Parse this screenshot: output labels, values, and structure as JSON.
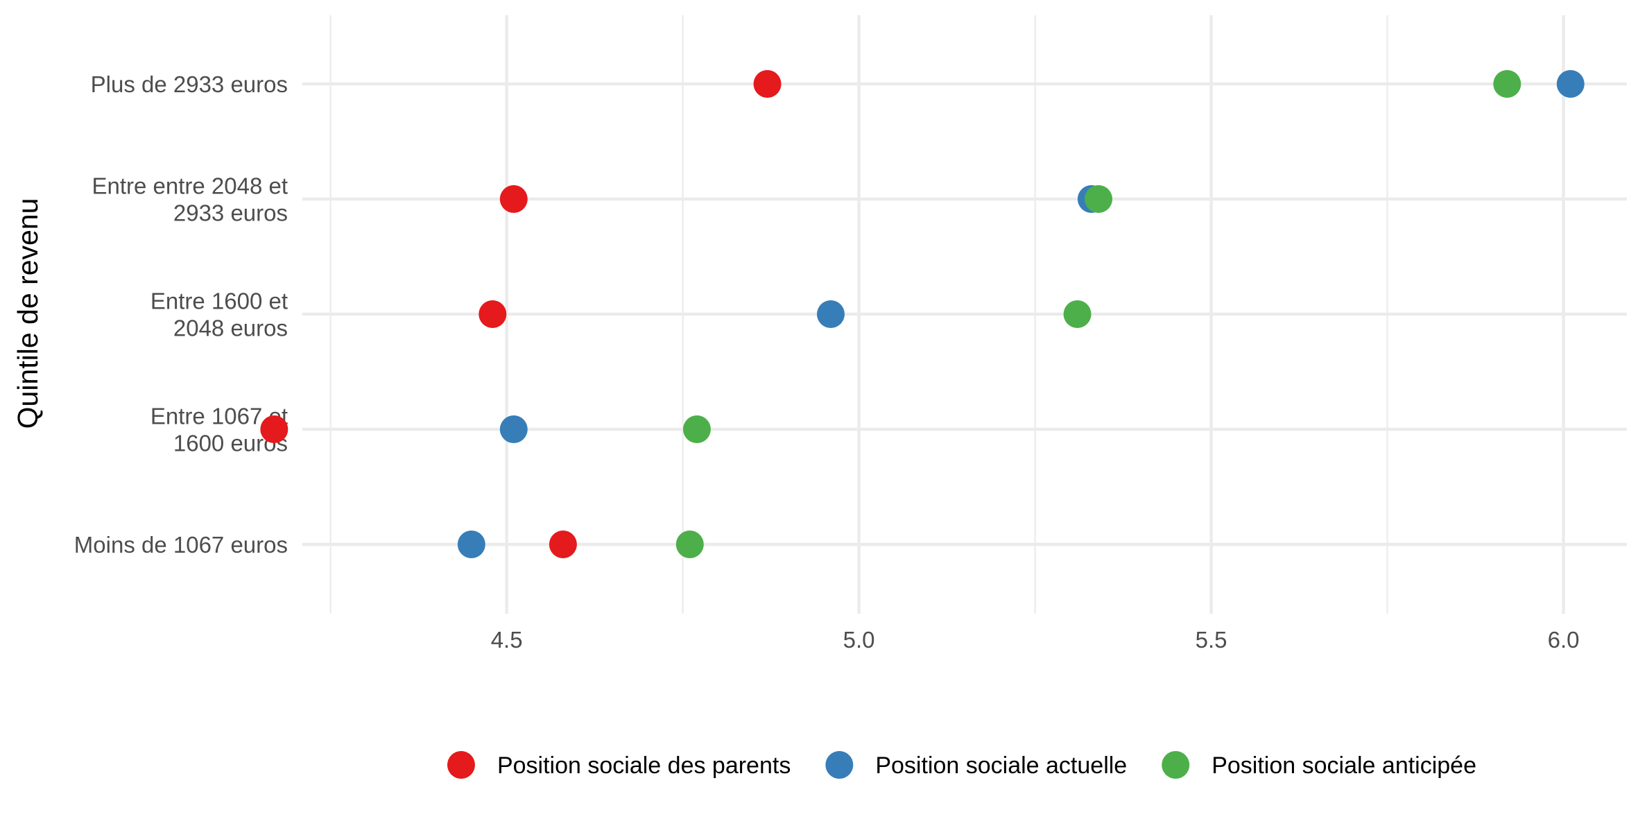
{
  "chart_data": {
    "type": "scatter",
    "title": "",
    "xlabel": "",
    "ylabel": "Quintile de revenu",
    "xlim": [
      4.21,
      6.09
    ],
    "x_ticks": [
      4.5,
      5.0,
      5.5,
      6.0
    ],
    "x_tick_labels": [
      "4.5",
      "5.0",
      "5.5",
      "6.0"
    ],
    "grid": true,
    "legend_position": "bottom",
    "categories": [
      "Plus de 2933 euros",
      "Entre entre 2048 et\n2933 euros",
      "Entre 1600 et\n2048 euros",
      "Entre 1067 et\n1600 euros",
      "Moins de 1067 euros"
    ],
    "series": [
      {
        "name": "Position sociale des parents",
        "color": "#e41a1c",
        "values": [
          4.87,
          4.51,
          4.48,
          4.17,
          4.58
        ]
      },
      {
        "name": "Position sociale actuelle",
        "color": "#377eb8",
        "values": [
          6.01,
          5.33,
          4.96,
          4.51,
          4.45
        ]
      },
      {
        "name": "Position sociale anticipée",
        "color": "#4daf4a",
        "values": [
          5.92,
          5.34,
          5.31,
          4.77,
          4.76
        ]
      }
    ]
  }
}
